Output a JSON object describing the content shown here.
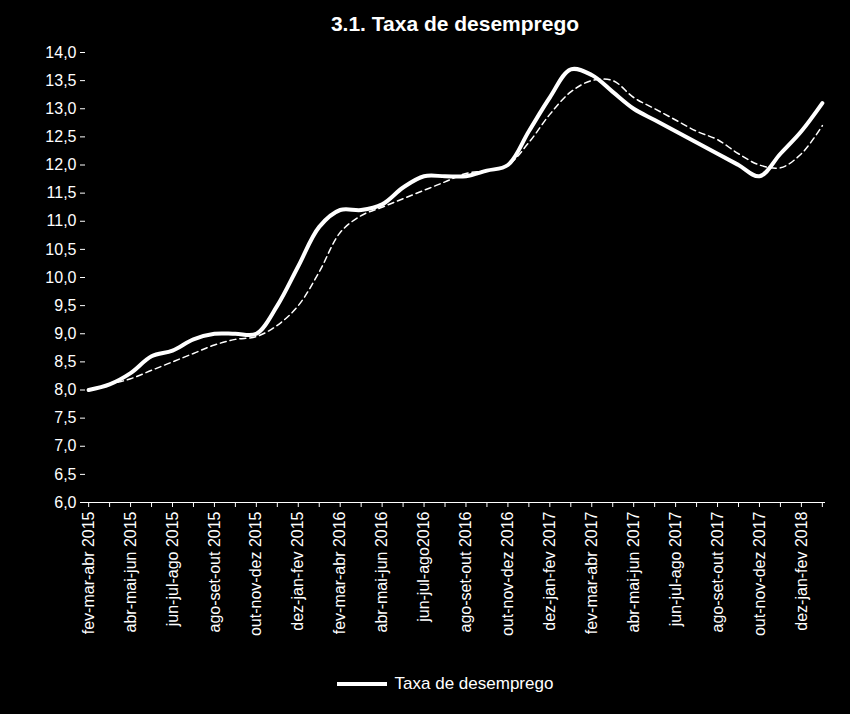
{
  "chart_data": {
    "type": "line",
    "title": "3.1. Taxa de desemprego",
    "categories": [
      "fev-mar-abr 2015",
      null,
      "abr-mai-jun 2015",
      null,
      "jun-jul-ago 2015",
      null,
      "ago-set-out 2015",
      null,
      "out-nov-dez 2015",
      null,
      "dez-jan-fev 2015",
      null,
      "fev-mar-abr 2016",
      null,
      "abr-mai-jun 2016",
      null,
      "jun-jul-ago2016",
      null,
      "ago-set-out 2016",
      null,
      "out-nov-dez 2016",
      null,
      "dez-jan-fev 2017",
      null,
      "fev-mar-abr 2017",
      null,
      "abr-mai-jun 2017",
      null,
      "jun-jul-ago 2017",
      null,
      "ago-set-out 2017",
      null,
      "out-nov-dez 2017",
      null,
      "dez-jan-fev 2018",
      null
    ],
    "series": [
      {
        "name": "Taxa de desemprego",
        "color": "#ffffff",
        "line_style": "solid",
        "values": [
          8.0,
          8.1,
          8.3,
          8.6,
          8.7,
          8.9,
          9.0,
          9.0,
          9.0,
          9.5,
          10.2,
          10.9,
          11.2,
          11.2,
          11.3,
          11.6,
          11.8,
          11.8,
          11.8,
          11.9,
          12.0,
          12.6,
          13.2,
          13.7,
          13.6,
          13.3,
          13.0,
          12.8,
          12.6,
          12.4,
          12.2,
          12.0,
          11.8,
          12.2,
          12.6,
          13.1
        ]
      },
      {
        "color": "#ffffff",
        "line_style": "dashed",
        "values": [
          8.0,
          8.1,
          8.2,
          8.35,
          8.5,
          8.65,
          8.8,
          8.9,
          8.95,
          9.15,
          9.5,
          10.1,
          10.8,
          11.1,
          11.25,
          11.4,
          11.55,
          11.7,
          11.85,
          11.9,
          12.0,
          12.4,
          12.9,
          13.3,
          13.5,
          13.5,
          13.2,
          13.0,
          12.8,
          12.6,
          12.45,
          12.2,
          12.0,
          11.95,
          12.2,
          12.7
        ]
      }
    ],
    "ylim": [
      6.0,
      14.0
    ],
    "yticks": [
      {
        "value": 6.0,
        "label": "6,0"
      },
      {
        "value": 6.5,
        "label": "6,5"
      },
      {
        "value": 7.0,
        "label": "7,0"
      },
      {
        "value": 7.5,
        "label": "7,5"
      },
      {
        "value": 8.0,
        "label": "8,0"
      },
      {
        "value": 8.5,
        "label": "8,5"
      },
      {
        "value": 9.0,
        "label": "9,0"
      },
      {
        "value": 9.5,
        "label": "9,5"
      },
      {
        "value": 10.0,
        "label": "10,0"
      },
      {
        "value": 10.5,
        "label": "10,5"
      },
      {
        "value": 11.0,
        "label": "11,0"
      },
      {
        "value": 11.5,
        "label": "11,5"
      },
      {
        "value": 12.0,
        "label": "12,0"
      },
      {
        "value": 12.5,
        "label": "12,5"
      },
      {
        "value": 13.0,
        "label": "13,0"
      },
      {
        "value": 13.5,
        "label": "13,5"
      },
      {
        "value": 14.0,
        "label": "14,0"
      }
    ],
    "grid": false,
    "legend": "bottom"
  }
}
